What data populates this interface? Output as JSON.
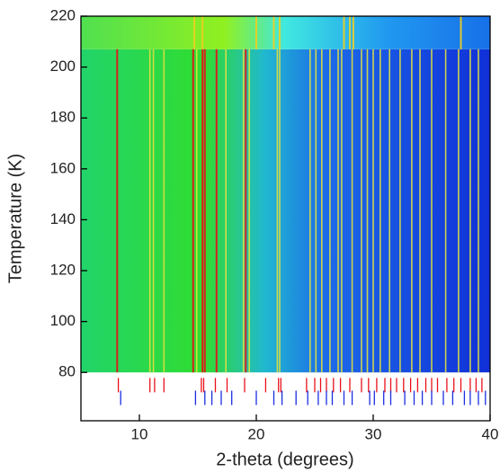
{
  "chart_data": {
    "type": "heatmap-peaks",
    "xlabel": "2-theta (degrees)",
    "ylabel": "Temperature (K)",
    "xlim": [
      5,
      40
    ],
    "ylim": [
      61,
      220
    ],
    "xticks": [
      10,
      20,
      30,
      40
    ],
    "yticks": [
      80,
      100,
      120,
      140,
      160,
      180,
      200,
      220
    ],
    "map_range": [
      80,
      220
    ],
    "phase_boundary": 207,
    "strong_peaks": {
      "color": "#e8101a",
      "values": [
        8.1,
        14.6,
        15.4,
        15.6,
        16.6,
        19.1
      ]
    },
    "weak_peaks": {
      "color": "#e0e040",
      "values": [
        10.9,
        11.2,
        12.1,
        14.9,
        17.4,
        18.9,
        19.4,
        21.8,
        22.0,
        24.6,
        25.1,
        25.6,
        26.3,
        27.0,
        27.3,
        28.2,
        29.0,
        29.5,
        30.0,
        30.6,
        31.4,
        32.3,
        33.3,
        34.0,
        35.0,
        36.2,
        37.3,
        38.3,
        39.0
      ]
    },
    "high_peaks": {
      "color": "#f0d020",
      "values": [
        14.7,
        15.4,
        20.0,
        21.5,
        22.0,
        27.5,
        28.0,
        28.3,
        37.5
      ]
    },
    "reflections": [
      {
        "color": "#e8101a",
        "y": 75,
        "values": [
          8.2,
          10.9,
          11.3,
          12.1,
          15.3,
          15.5,
          16.5,
          17.5,
          19.0,
          20.8,
          21.9,
          22.1,
          24.3,
          25.0,
          25.5,
          26.0,
          26.6,
          27.2,
          28.0,
          29.0,
          29.6,
          30.3,
          31.0,
          31.5,
          32.0,
          32.6,
          33.2,
          33.8,
          34.5,
          35.0,
          35.5,
          36.3,
          36.9,
          37.5,
          38.3,
          38.8,
          39.3
        ]
      },
      {
        "color": "#1a2ee0",
        "y": 70,
        "values": [
          8.4,
          14.8,
          15.6,
          16.2,
          17.0,
          17.9,
          20.0,
          21.5,
          22.2,
          23.4,
          24.4,
          25.3,
          26.0,
          26.5,
          27.5,
          28.2,
          29.7,
          30.1,
          30.9,
          31.5,
          32.7,
          33.5,
          34.2,
          35.0,
          36.0,
          36.8,
          37.8,
          38.3,
          39.0,
          39.6
        ]
      }
    ]
  }
}
